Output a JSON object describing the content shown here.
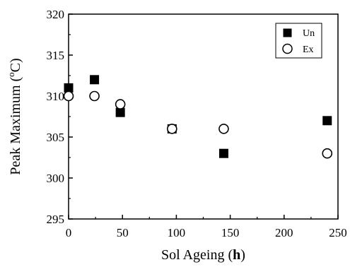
{
  "chart_data": {
    "type": "scatter",
    "title": "",
    "xlabel_main": "Sol Ageing (",
    "xlabel_unit": "h",
    "xlabel_close": ")",
    "ylabel_main": "Peak Maximum (",
    "ylabel_degree": "o",
    "ylabel_unit": "C)",
    "xlim": [
      0,
      250
    ],
    "ylim": [
      295,
      320
    ],
    "xticks": [
      0,
      50,
      100,
      150,
      200,
      250
    ],
    "yticks": [
      295,
      300,
      305,
      310,
      315,
      320
    ],
    "grid": false,
    "legend_position": "top-right",
    "series": [
      {
        "name": "Un",
        "marker": "filled-square",
        "color": "#000000",
        "x": [
          0,
          24,
          48,
          96,
          144,
          240
        ],
        "y": [
          311,
          312,
          308,
          306,
          303,
          307
        ]
      },
      {
        "name": "Ex",
        "marker": "open-circle",
        "color": "#000000",
        "x": [
          0,
          24,
          48,
          96,
          144,
          240
        ],
        "y": [
          310,
          310,
          309,
          306,
          306,
          303
        ]
      }
    ]
  }
}
